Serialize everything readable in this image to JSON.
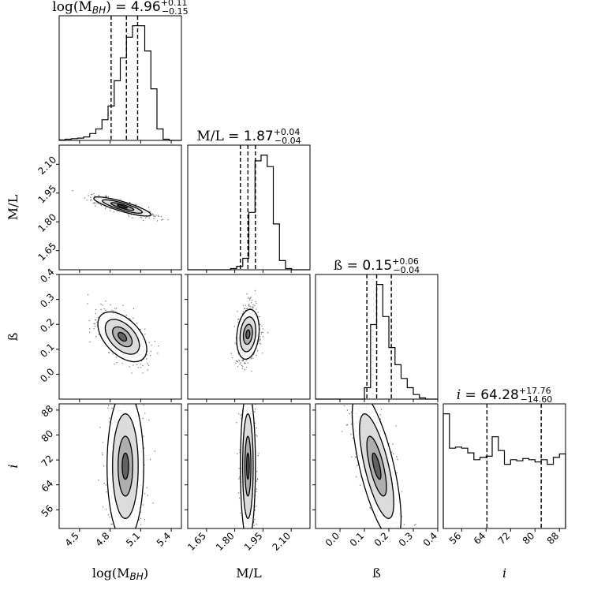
{
  "chart_data": {
    "type": "corner",
    "parameters": [
      {
        "key": "logmbh",
        "label": "log(M",
        "label_sub": "BH",
        "label_close": ")",
        "title_prefix": "log(M",
        "title_sub": "BH",
        "title_close": ") = ",
        "median": "4.96",
        "plus": "+0.11",
        "minus": "−0.15",
        "median_value": 4.96,
        "lo_value": 4.81,
        "hi_value": 5.07,
        "range": [
          4.3,
          5.5
        ],
        "ticks": [
          4.5,
          4.8,
          5.1,
          5.4
        ],
        "tick_labels": [
          "4.5",
          "4.8",
          "5.1",
          "5.4"
        ],
        "hist": [
          0.5,
          1,
          1.5,
          2,
          3,
          6,
          10,
          18,
          30,
          52,
          72,
          90,
          100,
          100,
          78,
          45,
          10,
          1,
          0,
          0
        ],
        "scatter_std": 0.13,
        "scatter_mean": 4.93
      },
      {
        "key": "ml",
        "label": "M/L",
        "title_prefix": "M/L = ",
        "median": "1.87",
        "plus": "+0.04",
        "minus": "−0.04",
        "median_value": 1.87,
        "lo_value": 1.83,
        "hi_value": 1.91,
        "range": [
          1.55,
          2.2
        ],
        "ticks": [
          1.65,
          1.8,
          1.95,
          2.1
        ],
        "tick_labels": [
          "1.65",
          "1.80",
          "1.95",
          "2.10"
        ],
        "hist": [
          0,
          0,
          0,
          0,
          0,
          0,
          0,
          1,
          3,
          10,
          50,
          95,
          100,
          90,
          40,
          8,
          1,
          0,
          0,
          0
        ],
        "scatter_std": 0.035,
        "scatter_mean": 1.87
      },
      {
        "key": "beta",
        "label": "ß",
        "title_prefix": "ß = ",
        "median": "0.15",
        "plus": "+0.06",
        "minus": "−0.04",
        "median_value": 0.15,
        "lo_value": 0.11,
        "hi_value": 0.21,
        "range": [
          -0.1,
          0.4
        ],
        "ticks": [
          0.0,
          0.1,
          0.2,
          0.3,
          0.4
        ],
        "tick_labels": [
          "0.0",
          "0.1",
          "0.2",
          "0.3",
          "0.4"
        ],
        "hist": [
          0,
          0,
          0,
          0,
          0,
          0,
          0,
          0,
          10,
          65,
          100,
          72,
          45,
          30,
          18,
          10,
          4,
          1,
          0,
          0
        ],
        "scatter_std": 0.05,
        "scatter_mean": 0.15
      },
      {
        "key": "i",
        "label": "i",
        "title_prefix": "i = ",
        "median": "64.28",
        "plus": "+17.76",
        "minus": "−14.60",
        "median_value": 64.28,
        "lo_value": 49.68,
        "hi_value": 82.04,
        "range": [
          50,
          90
        ],
        "ticks": [
          56,
          64,
          72,
          80,
          88
        ],
        "tick_labels": [
          "56",
          "64",
          "72",
          "80",
          "88"
        ],
        "hist": [
          100,
          70,
          71,
          70,
          66,
          60,
          62,
          63,
          80,
          68,
          56,
          60,
          59,
          61,
          60,
          58,
          60,
          56,
          62,
          65
        ],
        "scatter_std": 11,
        "scatter_mean": 70
      }
    ],
    "left_tick_labels": {
      "ml": [
        "1.65",
        "1.80",
        "1.95",
        "2.10"
      ],
      "beta": [
        "0.0",
        "0.1",
        "0.2",
        "0.3",
        "0.4"
      ],
      "i": [
        "56",
        "64",
        "72",
        "80",
        "88"
      ]
    },
    "colors": {
      "points": "#000000",
      "contour_fill": "#7f7f7f",
      "line": "#000000"
    }
  }
}
